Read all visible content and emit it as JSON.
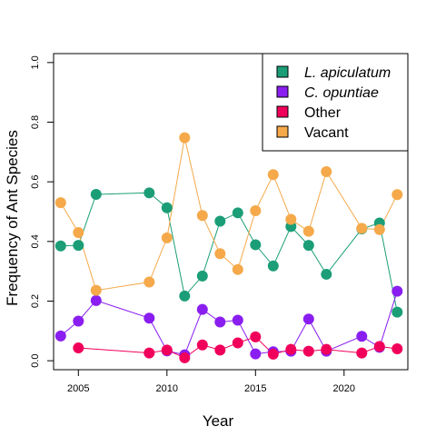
{
  "chart_data": {
    "type": "line",
    "title": "",
    "xlabel": "Year",
    "ylabel": "Frequency of Ant Species",
    "xlim": [
      2003.6,
      2023.6
    ],
    "ylim": [
      -0.03,
      1.03
    ],
    "x_ticks": [
      "2005",
      "2010",
      "2015",
      "2020"
    ],
    "x_tick_values": [
      2005,
      2010,
      2015,
      2020
    ],
    "y_ticks": [
      "0.0",
      "0.2",
      "0.4",
      "0.6",
      "0.8",
      "1.0"
    ],
    "y_tick_values": [
      0.0,
      0.2,
      0.4,
      0.6,
      0.8,
      1.0
    ],
    "grid": false,
    "legend_position": "top-right",
    "series": [
      {
        "name": "L. apiculatum",
        "italic": true,
        "color": "#1b9e77",
        "x": [
          2004,
          2005,
          2006,
          2009,
          2010,
          2011,
          2012,
          2013,
          2014,
          2015,
          2016,
          2017,
          2018,
          2019,
          2021,
          2022,
          2023
        ],
        "values": [
          0.385,
          0.387,
          0.558,
          0.563,
          0.513,
          0.217,
          0.284,
          0.468,
          0.496,
          0.389,
          0.318,
          0.45,
          0.387,
          0.29,
          0.442,
          0.462,
          0.163
        ]
      },
      {
        "name": "C. opuntiae",
        "italic": true,
        "color": "#8a1ef0",
        "x": [
          2004,
          2005,
          2006,
          2009,
          2010,
          2011,
          2012,
          2013,
          2014,
          2015,
          2016,
          2017,
          2018,
          2019,
          2021,
          2022,
          2023
        ],
        "values": [
          0.083,
          0.133,
          0.202,
          0.143,
          0.033,
          0.02,
          0.172,
          0.13,
          0.136,
          0.023,
          0.03,
          0.032,
          0.14,
          0.032,
          0.082,
          0.045,
          0.233
        ]
      },
      {
        "name": "Other",
        "italic": false,
        "color": "#f0005a",
        "x": [
          2005,
          2009,
          2010,
          2011,
          2012,
          2013,
          2014,
          2015,
          2016,
          2017,
          2018,
          2019,
          2021,
          2022,
          2023
        ],
        "values": [
          0.043,
          0.026,
          0.036,
          0.01,
          0.053,
          0.036,
          0.06,
          0.08,
          0.022,
          0.038,
          0.032,
          0.038,
          0.026,
          0.048,
          0.04
        ]
      },
      {
        "name": "Vacant",
        "italic": false,
        "color": "#f5a94a",
        "x": [
          2004,
          2005,
          2006,
          2009,
          2010,
          2011,
          2012,
          2013,
          2014,
          2015,
          2016,
          2017,
          2018,
          2019,
          2021,
          2022,
          2023
        ],
        "values": [
          0.53,
          0.43,
          0.236,
          0.264,
          0.412,
          0.748,
          0.487,
          0.359,
          0.306,
          0.503,
          0.624,
          0.474,
          0.434,
          0.634,
          0.444,
          0.44,
          0.557
        ]
      }
    ]
  }
}
